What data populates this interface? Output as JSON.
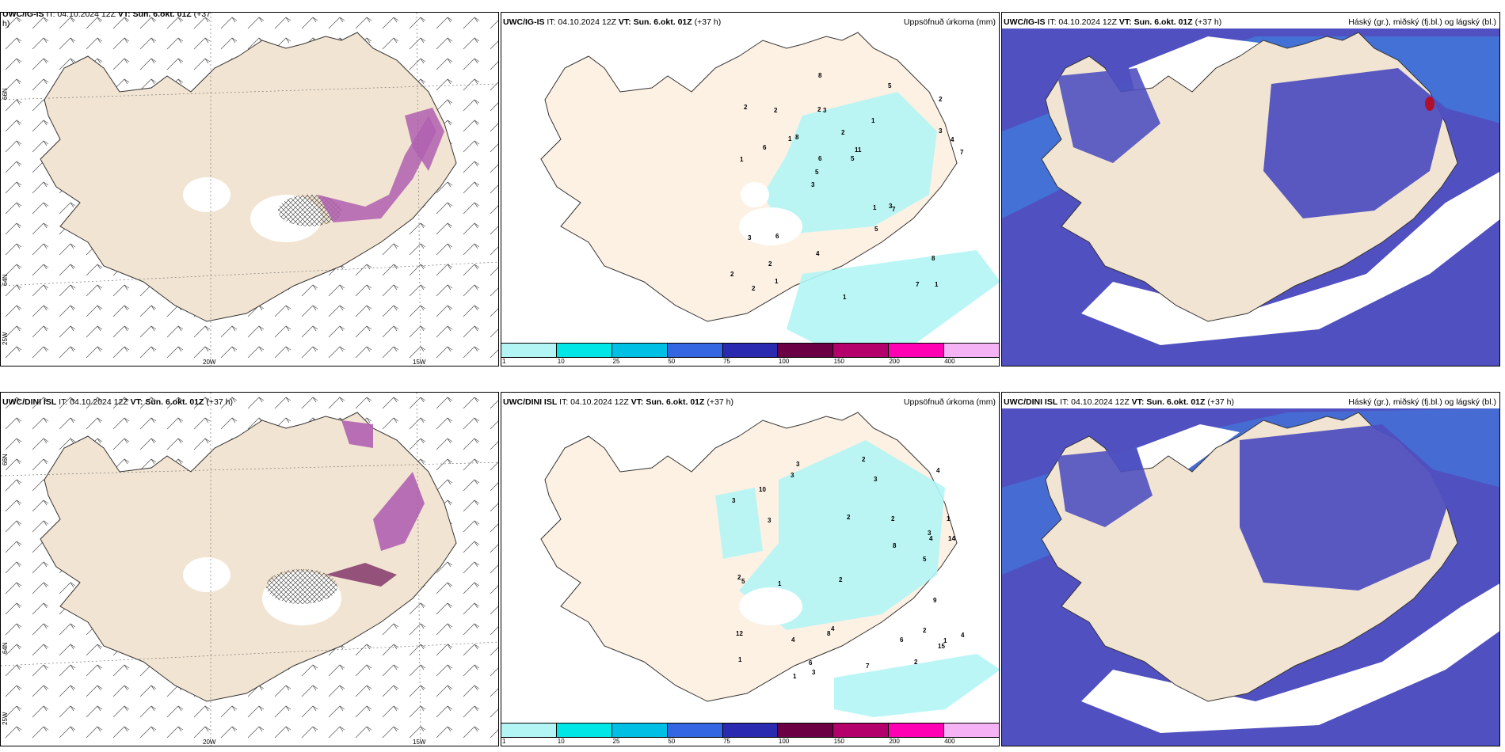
{
  "panels": [
    {
      "model": "UWC/IG-IS",
      "it": "IT: 04.10.2024 12Z",
      "vt": "VT: Sun. 6.okt. 01Z",
      "lead": "(+37",
      "lead2": "h)",
      "right": ""
    },
    {
      "model": "UWC/IG-IS",
      "it": "IT: 04.10.2024 12Z",
      "vt": "VT: Sun. 6.okt. 01Z",
      "lead": "(+37 h)",
      "right": "Uppsöfnuð úrkoma (mm)"
    },
    {
      "model": "UWC/IG-IS",
      "it": "IT: 04.10.2024 12Z",
      "vt": "VT: Sun. 6.okt. 01Z",
      "lead": "(+37 h)",
      "right": "Háský (gr.), miðský (fj.bl.) og lágský (bl.)"
    },
    {
      "model": "UWC/DINI ISL",
      "it": "IT: 04.10.2024 12Z",
      "vt": "VT: Sun. 6.okt. 01Z",
      "lead": "(+37 h)",
      "right": ""
    },
    {
      "model": "UWC/DINI ISL",
      "it": "IT: 04.10.2024 12Z",
      "vt": "VT: Sun. 6.okt. 01Z",
      "lead": "(+37 h)",
      "right": "Uppsöfnuð úrkoma (mm)"
    },
    {
      "model": "UWC/DINI ISL",
      "it": "IT: 04.10.2024 12Z",
      "vt": "VT: Sun. 6.okt. 01Z",
      "lead": "(+37 h)",
      "right": "Háský (gr.), miðský (fj.bl.) og lágský (bl.)"
    }
  ],
  "coords": {
    "lat66": "66N",
    "lat64": "64N",
    "lon20": "20W",
    "lon15": "15W",
    "lon25": "25W"
  },
  "colorbar": {
    "colors": [
      "#b3f5f5",
      "#00e5e5",
      "#00bfe5",
      "#3366e0",
      "#2a2ab0",
      "#6b0045",
      "#b3006b",
      "#ff00b3",
      "#f5b3f5"
    ],
    "ticks": [
      "1",
      "10",
      "25",
      "50",
      "75",
      "100",
      "150",
      "200",
      "400"
    ]
  },
  "precip_top": [
    "1",
    "1",
    "2",
    "3",
    "1",
    "2",
    "2",
    "2",
    "3",
    "8",
    "2",
    "2",
    "3",
    "11",
    "7",
    "2",
    "8",
    "7",
    "1",
    "3",
    "5",
    "4",
    "6",
    "2",
    "5",
    "6",
    "7",
    "8",
    "3",
    "1",
    "1",
    "6",
    "5",
    "1",
    "4",
    "5"
  ],
  "precip_bottom": [
    "2",
    "1",
    "1",
    "2",
    "1",
    "3",
    "3",
    "4",
    "4",
    "3",
    "14",
    "3",
    "5",
    "3",
    "12",
    "10",
    "15",
    "3",
    "4",
    "4",
    "2",
    "5",
    "7",
    "8",
    "6",
    "8",
    "2",
    "3",
    "2",
    "4",
    "1",
    "6",
    "1",
    "2",
    "9",
    "2"
  ],
  "colors": {
    "land": "#f2e4d2",
    "land_precip": "#fdf1e4",
    "cloud_high": "#5050c0",
    "cloud_mid": "#3f7fe0",
    "cloud_low": "#7fd0f5",
    "precip": "#b3f5f5",
    "snow": "#c080c0"
  }
}
